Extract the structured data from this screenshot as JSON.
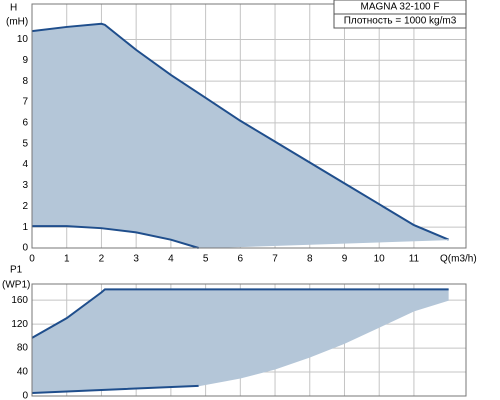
{
  "chart_data": [
    {
      "type": "line",
      "ylabel": [
        "H",
        "(mH)"
      ],
      "xlabel": "Q(m3/h)",
      "info_box": [
        "MAGNA 32-100 F",
        "Плотность = 1000 kg/m3"
      ],
      "xlim": [
        0,
        12.5
      ],
      "xticks": [
        0,
        1,
        2,
        3,
        4,
        5,
        6,
        7,
        8,
        9,
        10,
        11
      ],
      "ylim": [
        0,
        11.7
      ],
      "yticks": [
        0,
        1,
        2,
        3,
        4,
        5,
        6,
        7,
        8,
        9,
        10
      ],
      "grid": true,
      "area_color": "#b4c6d8",
      "series": [
        {
          "color": "#1f4e8c",
          "x": [
            0,
            1,
            2,
            2.1,
            3,
            4,
            5,
            6,
            7,
            8,
            9,
            10,
            11,
            12
          ],
          "values": [
            10.4,
            10.6,
            10.75,
            10.7,
            9.5,
            8.3,
            7.2,
            6.1,
            5.1,
            4.1,
            3.1,
            2.1,
            1.1,
            0.4
          ]
        },
        {
          "color": "#1f4e8c",
          "x": [
            0,
            1,
            2,
            3,
            4,
            4.8
          ],
          "values": [
            1.05,
            1.05,
            0.95,
            0.75,
            0.4,
            0
          ]
        },
        {
          "color": "#b4c6d8",
          "x": [
            4.8,
            12
          ],
          "values": [
            0,
            0.4
          ]
        }
      ]
    },
    {
      "type": "line",
      "ylabel": [
        "P1",
        "(WP1)"
      ],
      "xlim": [
        0,
        12.5
      ],
      "ylim": [
        0,
        187
      ],
      "yticks": [
        0,
        40,
        80,
        120,
        160
      ],
      "grid": true,
      "area_color": "#b4c6d8",
      "series": [
        {
          "color": "#1f4e8c",
          "x": [
            0,
            1,
            2,
            2.1,
            12
          ],
          "values": [
            97,
            130,
            173,
            178,
            178
          ]
        },
        {
          "color": "#1f4e8c",
          "x": [
            0,
            2,
            4.8
          ],
          "values": [
            5,
            10,
            17
          ]
        },
        {
          "color": "#b4c6d8",
          "x": [
            4.8,
            6,
            7,
            8,
            9,
            10,
            11,
            12
          ],
          "values": [
            17,
            30,
            45,
            65,
            88,
            115,
            142,
            160
          ]
        }
      ]
    }
  ]
}
